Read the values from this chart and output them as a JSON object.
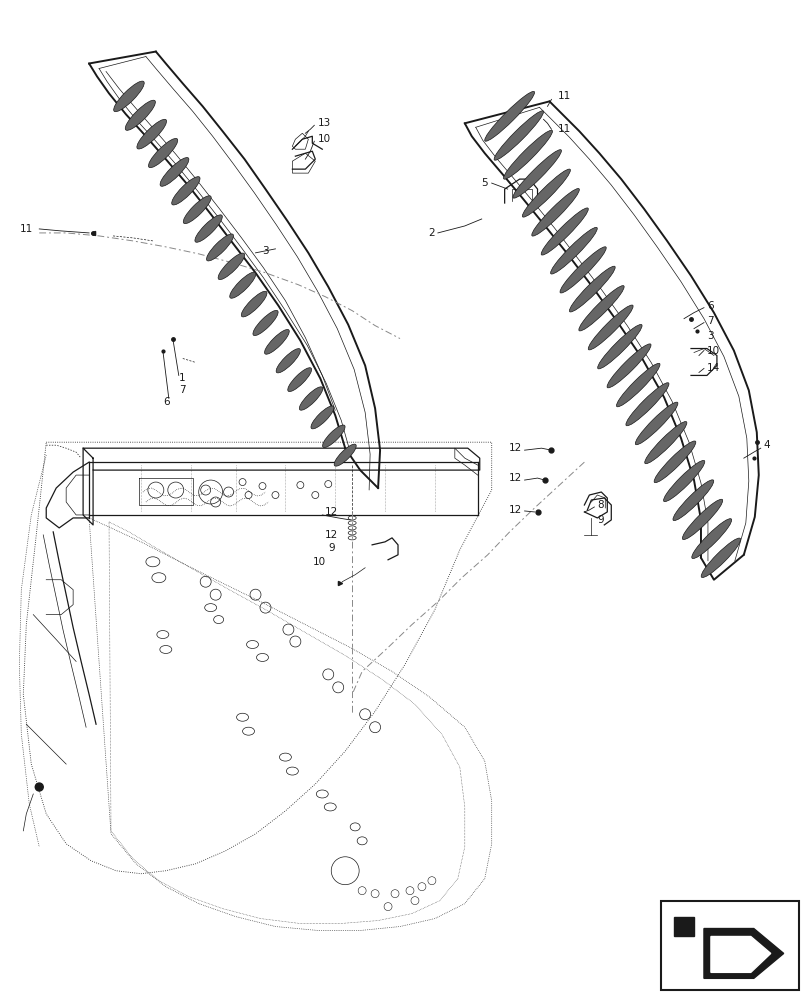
{
  "bg_color": "#ffffff",
  "line_color": "#1a1a1a",
  "fig_width": 8.08,
  "fig_height": 10.0,
  "dpi": 100,
  "font_size": 7.5
}
